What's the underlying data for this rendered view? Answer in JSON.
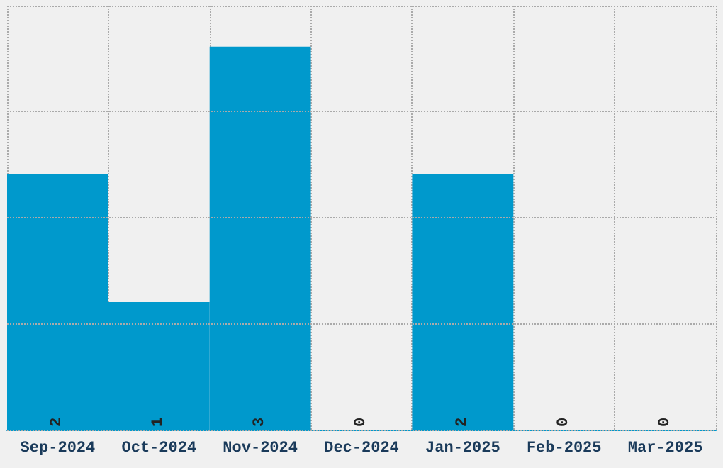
{
  "chart_data": {
    "type": "bar",
    "categories": [
      "Sep-2024",
      "Oct-2024",
      "Nov-2024",
      "Dec-2024",
      "Jan-2025",
      "Feb-2025",
      "Mar-2025"
    ],
    "values": [
      2,
      1,
      3,
      0,
      2,
      0,
      0
    ],
    "color": "#0099cc",
    "data_labels": true,
    "grid": true,
    "tick_labels": "x",
    "ylim": [
      0,
      3.32
    ],
    "yticks": [
      {
        "value": 0,
        "label": null
      },
      {
        "value": 0.83,
        "label": null
      },
      {
        "value": 1.66,
        "label": null
      },
      {
        "value": 2.49,
        "label": null
      },
      {
        "value": 3.32,
        "label": null
      }
    ]
  }
}
